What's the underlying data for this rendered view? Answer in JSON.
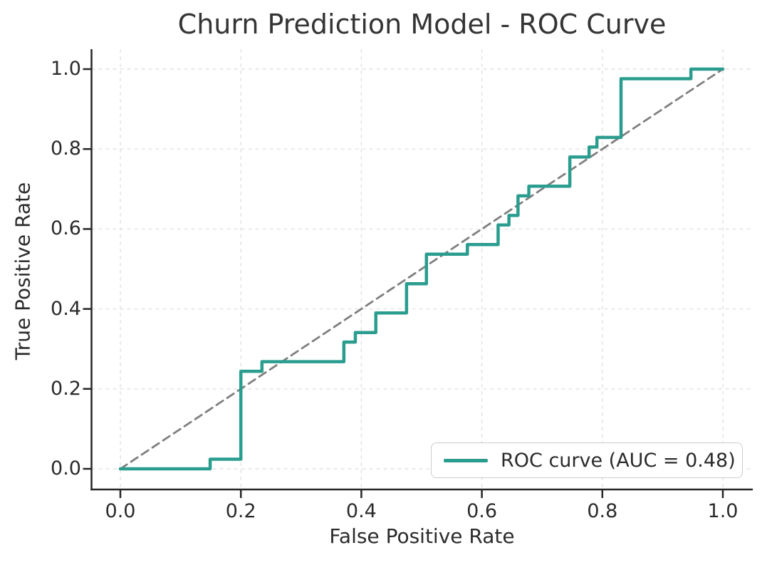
{
  "figure": {
    "title": "Churn Prediction Model - ROC Curve"
  },
  "chart_data": {
    "type": "line",
    "subtype": "roc-step-curve",
    "title": "Churn Prediction Model - ROC Curve",
    "xlabel": "False Positive Rate",
    "ylabel": "True Positive Rate",
    "xlim": [
      0.0,
      1.0
    ],
    "ylim": [
      0.0,
      1.0
    ],
    "xticks": [
      0.0,
      0.2,
      0.4,
      0.6,
      0.8,
      1.0
    ],
    "yticks": [
      0.0,
      0.2,
      0.4,
      0.6,
      0.8,
      1.0
    ],
    "xtick_labels": [
      "0.0",
      "0.2",
      "0.4",
      "0.6",
      "0.8",
      "1.0"
    ],
    "ytick_labels": [
      "0.0",
      "0.2",
      "0.4",
      "0.6",
      "0.8",
      "1.0"
    ],
    "grid": true,
    "grid_style": "dashed",
    "legend_position": "lower right",
    "auc": 0.48,
    "series": [
      {
        "name": "ROC curve (AUC = 0.48)",
        "color": "#2a9d8f",
        "style": "solid",
        "width": 4.5,
        "points": [
          [
            0.0,
            0.0
          ],
          [
            0.149,
            0.0
          ],
          [
            0.149,
            0.024
          ],
          [
            0.2,
            0.024
          ],
          [
            0.2,
            0.244
          ],
          [
            0.235,
            0.244
          ],
          [
            0.235,
            0.268
          ],
          [
            0.371,
            0.268
          ],
          [
            0.371,
            0.317
          ],
          [
            0.39,
            0.317
          ],
          [
            0.39,
            0.341
          ],
          [
            0.424,
            0.341
          ],
          [
            0.424,
            0.39
          ],
          [
            0.475,
            0.39
          ],
          [
            0.475,
            0.463
          ],
          [
            0.508,
            0.463
          ],
          [
            0.508,
            0.537
          ],
          [
            0.576,
            0.537
          ],
          [
            0.576,
            0.561
          ],
          [
            0.627,
            0.561
          ],
          [
            0.627,
            0.61
          ],
          [
            0.645,
            0.61
          ],
          [
            0.645,
            0.634
          ],
          [
            0.66,
            0.634
          ],
          [
            0.66,
            0.683
          ],
          [
            0.678,
            0.683
          ],
          [
            0.678,
            0.707
          ],
          [
            0.746,
            0.707
          ],
          [
            0.746,
            0.78
          ],
          [
            0.778,
            0.78
          ],
          [
            0.778,
            0.805
          ],
          [
            0.791,
            0.805
          ],
          [
            0.791,
            0.829
          ],
          [
            0.831,
            0.829
          ],
          [
            0.831,
            0.976
          ],
          [
            0.947,
            0.976
          ],
          [
            0.947,
            1.0
          ],
          [
            1.0,
            1.0
          ]
        ]
      },
      {
        "name": "chance-diagonal",
        "color": "#7f7f7f",
        "style": "dashed",
        "width": 2.8,
        "points": [
          [
            0.0,
            0.0
          ],
          [
            1.0,
            1.0
          ]
        ]
      }
    ]
  },
  "legend": {
    "label": "ROC curve (AUC = 0.48)",
    "swatch_color": "#2a9d8f"
  },
  "colors": {
    "roc_line": "#2a9d8f",
    "diagonal_line": "#7f7f7f",
    "grid_line": "#e1e1e1",
    "spine": "#262626",
    "text": "#2b2b2b",
    "background": "#ffffff"
  }
}
